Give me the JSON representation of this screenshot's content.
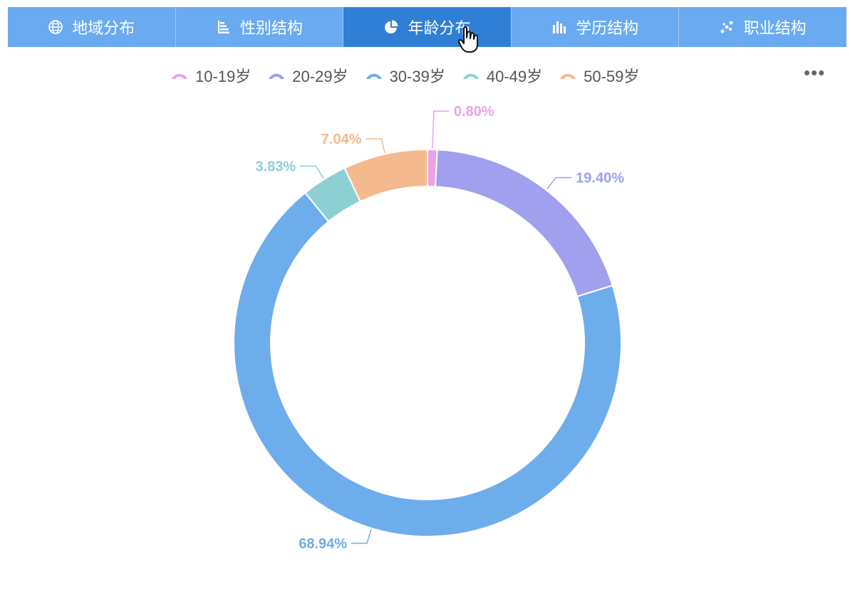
{
  "tabs": [
    {
      "label": "地域分布",
      "icon": "globe-icon",
      "active": false
    },
    {
      "label": "性别结构",
      "icon": "bar-list-icon",
      "active": false
    },
    {
      "label": "年龄分布",
      "icon": "pie-icon",
      "active": true
    },
    {
      "label": "学历结构",
      "icon": "column-chart-icon",
      "active": false
    },
    {
      "label": "职业结构",
      "icon": "scatter-icon",
      "active": false
    }
  ],
  "more_label": "•••",
  "chart_data": {
    "type": "pie",
    "variant": "donut",
    "legend_position": "top",
    "labels": [
      "10-19岁",
      "20-29岁",
      "30-39岁",
      "40-49岁",
      "50-59岁"
    ],
    "values": [
      0.8,
      19.4,
      68.94,
      3.83,
      7.04
    ],
    "value_labels": [
      "0.80%",
      "19.40%",
      "68.94%",
      "3.83%",
      "7.04%"
    ],
    "colors": [
      "#e8a3e8",
      "#a0a0ee",
      "#6eadec",
      "#8dd0d3",
      "#f5b98e"
    ],
    "start_angle_deg": 0,
    "direction": "clockwise"
  }
}
